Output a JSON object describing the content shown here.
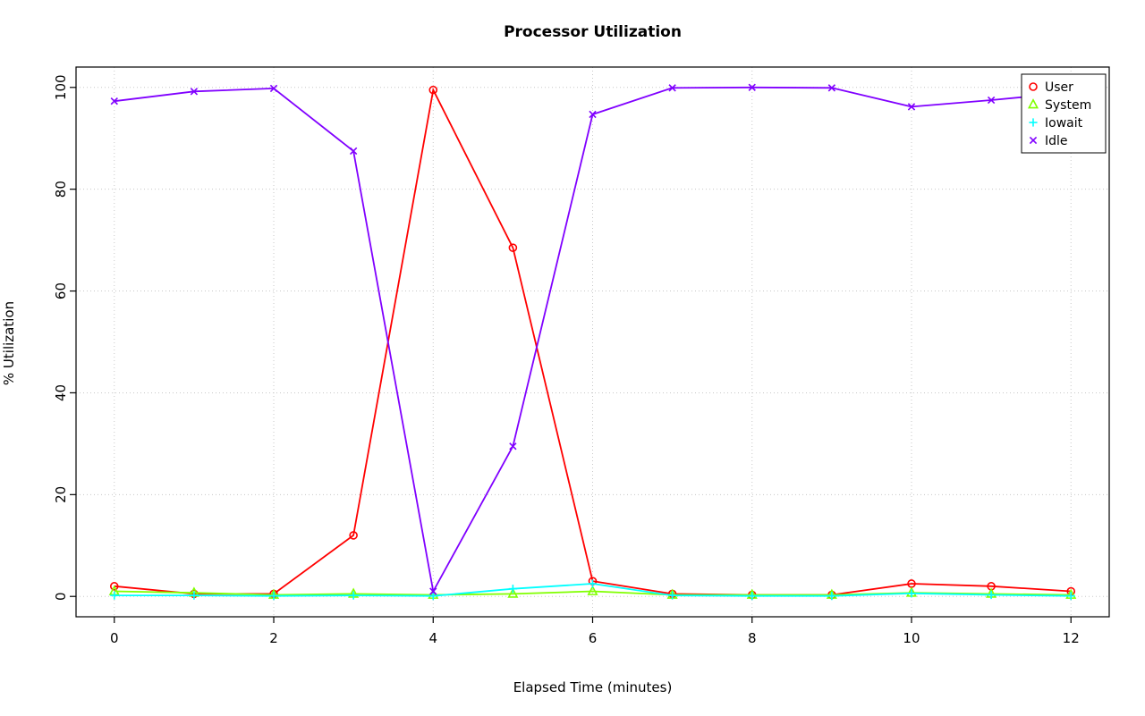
{
  "chart_data": {
    "type": "line",
    "title": "Processor Utilization",
    "xlabel": "Elapsed Time (minutes)",
    "ylabel": "% Utilization",
    "x": [
      0,
      1,
      2,
      3,
      4,
      5,
      6,
      7,
      8,
      9,
      10,
      11,
      12
    ],
    "xlim": [
      0,
      12
    ],
    "ylim": [
      0,
      100
    ],
    "x_ticks": [
      0,
      2,
      4,
      6,
      8,
      10,
      12
    ],
    "y_ticks": [
      0,
      20,
      40,
      60,
      80,
      100
    ],
    "grid": true,
    "grid_color": "#c8c8c8",
    "legend_position": "top-right",
    "series": [
      {
        "name": "User",
        "color": "#FF0000",
        "marker": "circle",
        "values": [
          2,
          0.5,
          0.5,
          12,
          99.5,
          68.5,
          3,
          0.5,
          0.3,
          0.3,
          2.5,
          2,
          1
        ]
      },
      {
        "name": "System",
        "color": "#80FF00",
        "marker": "triangle",
        "values": [
          1,
          0.7,
          0.3,
          0.5,
          0.3,
          0.5,
          1,
          0.3,
          0.3,
          0.3,
          0.7,
          0.5,
          0.3
        ]
      },
      {
        "name": "Iowait",
        "color": "#00FFFF",
        "marker": "plus",
        "values": [
          0.2,
          0.2,
          0.1,
          0.2,
          0.1,
          1.5,
          2.5,
          0.2,
          0.1,
          0.1,
          0.6,
          0.3,
          0.1
        ]
      },
      {
        "name": "Idle",
        "color": "#8000FF",
        "marker": "x",
        "values": [
          97.3,
          99.2,
          99.8,
          87.5,
          1,
          29.5,
          94.7,
          99.9,
          100,
          99.9,
          96.2,
          97.5,
          99
        ]
      }
    ]
  }
}
